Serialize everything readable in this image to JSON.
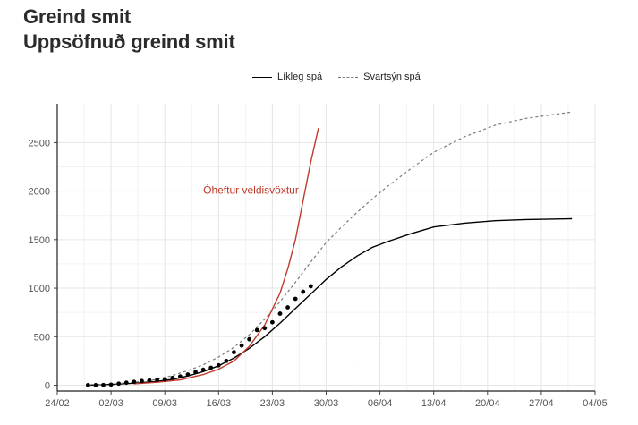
{
  "title": "Greind smit",
  "subtitle": "Uppsöfnuð greind smit",
  "legend": {
    "solid_label": "Líkleg spá",
    "dashed_label": "Svartsýn spá"
  },
  "annotation": "Óheftur veldisvöxtur",
  "colors": {
    "likely": "#000000",
    "pessimistic": "#7a7a7a",
    "exponential": "#c0392b",
    "observed": "#000000",
    "grid": "#e6e6e6",
    "annotation": "#c0392b"
  },
  "chart_data": {
    "type": "line",
    "title": "Greind smit",
    "subtitle": "Uppsöfnuð greind smit",
    "xlabel": "",
    "ylabel": "",
    "x_ticks": [
      "24/02",
      "02/03",
      "09/03",
      "16/03",
      "23/03",
      "30/03",
      "06/04",
      "13/04",
      "20/04",
      "27/04",
      "04/05"
    ],
    "y_ticks": [
      0,
      500,
      1000,
      1500,
      2000,
      2500
    ],
    "xlim": [
      "2020-02-24",
      "2020-05-04"
    ],
    "ylim": [
      -60,
      2900
    ],
    "grid": true,
    "legend_position": "top",
    "series": [
      {
        "name": "Líkleg spá",
        "style": "solid",
        "points": [
          [
            "2020-02-28",
            0
          ],
          [
            "2020-03-02",
            8
          ],
          [
            "2020-03-05",
            20
          ],
          [
            "2020-03-08",
            40
          ],
          [
            "2020-03-10",
            60
          ],
          [
            "2020-03-12",
            95
          ],
          [
            "2020-03-14",
            140
          ],
          [
            "2020-03-16",
            200
          ],
          [
            "2020-03-18",
            280
          ],
          [
            "2020-03-20",
            380
          ],
          [
            "2020-03-22",
            500
          ],
          [
            "2020-03-24",
            640
          ],
          [
            "2020-03-26",
            790
          ],
          [
            "2020-03-28",
            940
          ],
          [
            "2020-03-30",
            1090
          ],
          [
            "2020-04-01",
            1220
          ],
          [
            "2020-04-03",
            1330
          ],
          [
            "2020-04-05",
            1420
          ],
          [
            "2020-04-07",
            1480
          ],
          [
            "2020-04-10",
            1560
          ],
          [
            "2020-04-13",
            1630
          ],
          [
            "2020-04-17",
            1670
          ],
          [
            "2020-04-21",
            1695
          ],
          [
            "2020-04-25",
            1707
          ],
          [
            "2020-05-01",
            1715
          ]
        ]
      },
      {
        "name": "Svartsýn spá",
        "style": "dashed",
        "points": [
          [
            "2020-02-28",
            0
          ],
          [
            "2020-03-02",
            10
          ],
          [
            "2020-03-05",
            30
          ],
          [
            "2020-03-08",
            60
          ],
          [
            "2020-03-10",
            100
          ],
          [
            "2020-03-12",
            150
          ],
          [
            "2020-03-14",
            210
          ],
          [
            "2020-03-16",
            290
          ],
          [
            "2020-03-18",
            390
          ],
          [
            "2020-03-20",
            520
          ],
          [
            "2020-03-22",
            680
          ],
          [
            "2020-03-24",
            860
          ],
          [
            "2020-03-26",
            1060
          ],
          [
            "2020-03-28",
            1270
          ],
          [
            "2020-03-30",
            1470
          ],
          [
            "2020-04-01",
            1630
          ],
          [
            "2020-04-03",
            1780
          ],
          [
            "2020-04-05",
            1920
          ],
          [
            "2020-04-07",
            2050
          ],
          [
            "2020-04-10",
            2230
          ],
          [
            "2020-04-13",
            2400
          ],
          [
            "2020-04-17",
            2560
          ],
          [
            "2020-04-21",
            2680
          ],
          [
            "2020-04-25",
            2750
          ],
          [
            "2020-05-01",
            2815
          ]
        ]
      },
      {
        "name": "Óheftur veldisvöxtur",
        "style": "solid",
        "points": [
          [
            "2020-03-05",
            15
          ],
          [
            "2020-03-08",
            30
          ],
          [
            "2020-03-11",
            55
          ],
          [
            "2020-03-14",
            110
          ],
          [
            "2020-03-16",
            165
          ],
          [
            "2020-03-18",
            250
          ],
          [
            "2020-03-20",
            400
          ],
          [
            "2020-03-22",
            620
          ],
          [
            "2020-03-24",
            950
          ],
          [
            "2020-03-25",
            1200
          ],
          [
            "2020-03-26",
            1500
          ],
          [
            "2020-03-27",
            1900
          ],
          [
            "2020-03-28",
            2300
          ],
          [
            "2020-03-29",
            2650
          ]
        ]
      },
      {
        "name": "Greind smit",
        "style": "points",
        "points": [
          [
            "2020-02-28",
            1
          ],
          [
            "2020-02-29",
            1
          ],
          [
            "2020-03-01",
            2
          ],
          [
            "2020-03-02",
            6
          ],
          [
            "2020-03-03",
            16
          ],
          [
            "2020-03-04",
            26
          ],
          [
            "2020-03-05",
            34
          ],
          [
            "2020-03-06",
            43
          ],
          [
            "2020-03-07",
            50
          ],
          [
            "2020-03-08",
            55
          ],
          [
            "2020-03-09",
            60
          ],
          [
            "2020-03-10",
            75
          ],
          [
            "2020-03-11",
            90
          ],
          [
            "2020-03-12",
            110
          ],
          [
            "2020-03-13",
            135
          ],
          [
            "2020-03-14",
            160
          ],
          [
            "2020-03-15",
            180
          ],
          [
            "2020-03-16",
            205
          ],
          [
            "2020-03-17",
            250
          ],
          [
            "2020-03-18",
            340
          ],
          [
            "2020-03-19",
            409
          ],
          [
            "2020-03-20",
            473
          ],
          [
            "2020-03-21",
            568
          ],
          [
            "2020-03-22",
            588
          ],
          [
            "2020-03-23",
            648
          ],
          [
            "2020-03-24",
            737
          ],
          [
            "2020-03-25",
            802
          ],
          [
            "2020-03-26",
            890
          ],
          [
            "2020-03-27",
            963
          ],
          [
            "2020-03-28",
            1020
          ]
        ]
      }
    ]
  }
}
